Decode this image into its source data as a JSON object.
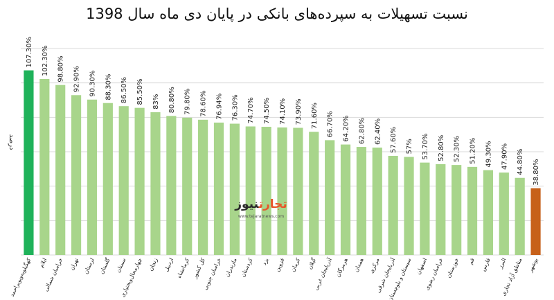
{
  "colors": {
    "highlight_high": "#1fb25a",
    "highlight_low": "#c7611a",
    "default_bar": "#a8d58b",
    "grid": "#d9d9d9"
  },
  "watermark": {
    "name_part1": "تجارت",
    "name_part2": "نیوز",
    "url": "www.tejaratnews.com"
  },
  "chart_data": {
    "type": "bar",
    "title": "نسبت تسهیلات به سپرده‌های بانکی در پایان دی ماه سال 1398",
    "xlabel": "",
    "ylabel": "درصد",
    "ylim": [
      0,
      120
    ],
    "grid": true,
    "legend": "none",
    "categories": [
      "کهگیلویه‌وبویراحمد",
      "ایلام",
      "خراسان شمالی",
      "تهران",
      "لرستان",
      "گلستان",
      "سمنان",
      "چهارمحال‌وبختیاری",
      "زنجان",
      "اردبیل",
      "کرمانشاه",
      "کل کشور",
      "خراسان جنوبی",
      "مازندران",
      "کردستان",
      "یزد",
      "قزوین",
      "کرمان",
      "گیلان",
      "آذربایجان غربی",
      "هرمزگان",
      "همدان",
      "مرکزی",
      "آذربایجان شرقی",
      "سیستان و بلوچستان",
      "اصفهان",
      "خراسان رضوی",
      "خوزستان",
      "قم",
      "فارس",
      "البرز",
      "مناطق آزاد تجاری",
      "بوشهر"
    ],
    "values": [
      107.3,
      102.3,
      98.8,
      92.9,
      90.3,
      88.3,
      86.5,
      85.5,
      83,
      80.8,
      79.8,
      78.6,
      76.94,
      76.3,
      74.7,
      74.5,
      74.1,
      73.9,
      71.6,
      66.7,
      64.2,
      62.8,
      62.4,
      57.6,
      57,
      53.7,
      52.8,
      52.3,
      51.2,
      49.3,
      47.9,
      44.8,
      38.8
    ],
    "value_labels": [
      "107.30%",
      "102.30%",
      "98.80%",
      "92.90%",
      "90.30%",
      "88.30%",
      "86.50%",
      "85.50%",
      "83%",
      "80.80%",
      "79.80%",
      "78.60%",
      "76.94%",
      "76.30%",
      "74.70%",
      "74.50%",
      "74.10%",
      "73.90%",
      "71.60%",
      "66.70%",
      "64.20%",
      "62.80%",
      "62.40%",
      "57.60%",
      "57%",
      "53.70%",
      "52.80%",
      "52.30%",
      "51.20%",
      "49.30%",
      "47.90%",
      "44.80%",
      "38.80%"
    ],
    "highlight_high_index": 0,
    "highlight_low_index": 32
  }
}
